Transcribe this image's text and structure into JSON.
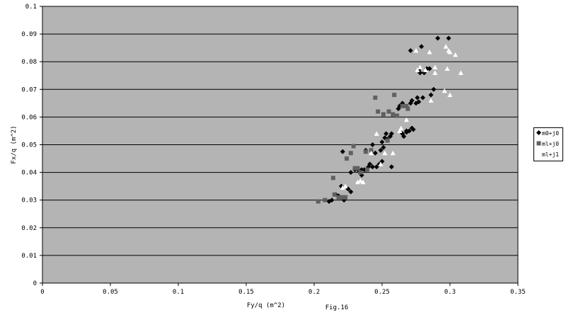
{
  "chart_data": {
    "type": "scatter",
    "title": "",
    "xlabel": "Fy/q (m^2)",
    "ylabel": "Fx/q (m^2)",
    "caption": "Fig.16",
    "xlim": [
      0,
      0.35
    ],
    "ylim": [
      0,
      0.1
    ],
    "xticks": [
      "0",
      "0.05",
      "0.1",
      "0.15",
      "0.2",
      "0.25",
      "0.3",
      "0.35"
    ],
    "yticks": [
      "0",
      "0.01",
      "0.02",
      "0.03",
      "0.04",
      "0.05",
      "0.06",
      "0.07",
      "0.08",
      "0.09",
      "0.1"
    ],
    "grid": "horizontal",
    "legend_position": "right",
    "colors": {
      "plot_bg": "#b4b4b4",
      "gridline": "#000000",
      "series1": "#000000",
      "series2": "#606060",
      "series3": "#ffffff"
    },
    "series": [
      {
        "name": "m0+j0",
        "marker": "diamond",
        "points": [
          [
            0.211,
            0.0295
          ],
          [
            0.213,
            0.03
          ],
          [
            0.216,
            0.032
          ],
          [
            0.218,
            0.0315
          ],
          [
            0.22,
            0.035
          ],
          [
            0.221,
            0.0475
          ],
          [
            0.222,
            0.03
          ],
          [
            0.225,
            0.034
          ],
          [
            0.227,
            0.033
          ],
          [
            0.227,
            0.04
          ],
          [
            0.23,
            0.041
          ],
          [
            0.233,
            0.0405
          ],
          [
            0.235,
            0.039
          ],
          [
            0.235,
            0.041
          ],
          [
            0.237,
            0.041
          ],
          [
            0.238,
            0.048
          ],
          [
            0.24,
            0.042
          ],
          [
            0.241,
            0.043
          ],
          [
            0.243,
            0.05
          ],
          [
            0.243,
            0.042
          ],
          [
            0.245,
            0.047
          ],
          [
            0.246,
            0.042
          ],
          [
            0.248,
            0.043
          ],
          [
            0.249,
            0.048
          ],
          [
            0.25,
            0.051
          ],
          [
            0.25,
            0.044
          ],
          [
            0.251,
            0.049
          ],
          [
            0.252,
            0.0525
          ],
          [
            0.253,
            0.054
          ],
          [
            0.254,
            0.052
          ],
          [
            0.256,
            0.053
          ],
          [
            0.257,
            0.054
          ],
          [
            0.257,
            0.042
          ],
          [
            0.262,
            0.063
          ],
          [
            0.263,
            0.064
          ],
          [
            0.265,
            0.054
          ],
          [
            0.265,
            0.065
          ],
          [
            0.266,
            0.053
          ],
          [
            0.268,
            0.055
          ],
          [
            0.268,
            0.0545
          ],
          [
            0.27,
            0.055
          ],
          [
            0.271,
            0.065
          ],
          [
            0.271,
            0.084
          ],
          [
            0.272,
            0.066
          ],
          [
            0.272,
            0.056
          ],
          [
            0.273,
            0.0555
          ],
          [
            0.275,
            0.065
          ],
          [
            0.276,
            0.067
          ],
          [
            0.277,
            0.077
          ],
          [
            0.277,
            0.0655
          ],
          [
            0.278,
            0.076
          ],
          [
            0.279,
            0.0855
          ],
          [
            0.28,
            0.067
          ],
          [
            0.281,
            0.076
          ],
          [
            0.283,
            0.0775
          ],
          [
            0.285,
            0.0775
          ],
          [
            0.286,
            0.068
          ],
          [
            0.288,
            0.07
          ],
          [
            0.291,
            0.0885
          ],
          [
            0.299,
            0.0885
          ]
        ]
      },
      {
        "name": "ml+j0",
        "marker": "square",
        "points": [
          [
            0.203,
            0.0295
          ],
          [
            0.208,
            0.03
          ],
          [
            0.214,
            0.038
          ],
          [
            0.215,
            0.032
          ],
          [
            0.218,
            0.031
          ],
          [
            0.221,
            0.031
          ],
          [
            0.223,
            0.031
          ],
          [
            0.224,
            0.045
          ],
          [
            0.227,
            0.047
          ],
          [
            0.229,
            0.0495
          ],
          [
            0.23,
            0.0415
          ],
          [
            0.232,
            0.0415
          ],
          [
            0.234,
            0.04
          ],
          [
            0.238,
            0.0475
          ],
          [
            0.239,
            0.041
          ],
          [
            0.242,
            0.048
          ],
          [
            0.245,
            0.067
          ],
          [
            0.247,
            0.062
          ],
          [
            0.251,
            0.061
          ],
          [
            0.254,
            0.0515
          ],
          [
            0.255,
            0.062
          ],
          [
            0.258,
            0.061
          ],
          [
            0.259,
            0.068
          ],
          [
            0.261,
            0.0605
          ],
          [
            0.265,
            0.064
          ],
          [
            0.268,
            0.064
          ],
          [
            0.269,
            0.063
          ]
        ]
      },
      {
        "name": "ml+j1",
        "marker": "triangle",
        "points": [
          [
            0.221,
            0.0345
          ],
          [
            0.223,
            0.035
          ],
          [
            0.232,
            0.0365
          ],
          [
            0.234,
            0.037
          ],
          [
            0.236,
            0.0365
          ],
          [
            0.242,
            0.047
          ],
          [
            0.246,
            0.054
          ],
          [
            0.249,
            0.043
          ],
          [
            0.252,
            0.047
          ],
          [
            0.258,
            0.047
          ],
          [
            0.263,
            0.055
          ],
          [
            0.264,
            0.056
          ],
          [
            0.268,
            0.059
          ],
          [
            0.275,
            0.084
          ],
          [
            0.276,
            0.077
          ],
          [
            0.278,
            0.078
          ],
          [
            0.282,
            0.077
          ],
          [
            0.285,
            0.0835
          ],
          [
            0.286,
            0.066
          ],
          [
            0.289,
            0.078
          ],
          [
            0.289,
            0.076
          ],
          [
            0.296,
            0.0695
          ],
          [
            0.297,
            0.0855
          ],
          [
            0.298,
            0.0775
          ],
          [
            0.299,
            0.084
          ],
          [
            0.3,
            0.0835
          ],
          [
            0.3,
            0.068
          ],
          [
            0.304,
            0.0825
          ],
          [
            0.308,
            0.076
          ]
        ]
      }
    ]
  }
}
